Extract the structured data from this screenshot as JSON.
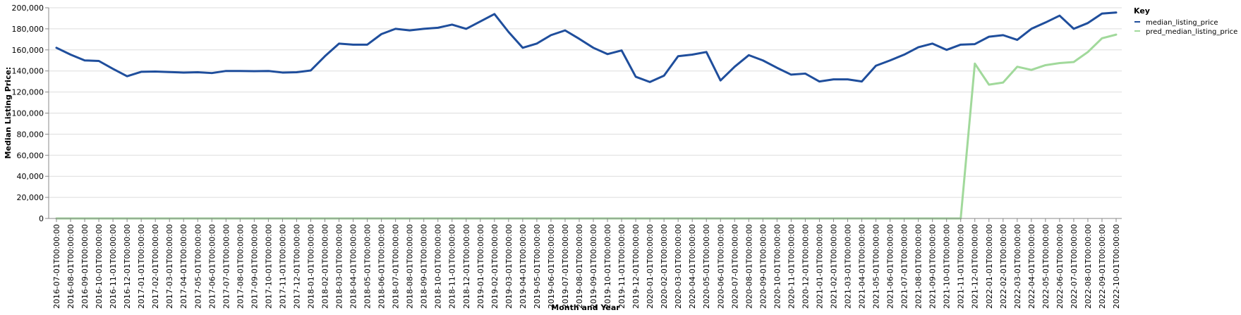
{
  "chart_data": {
    "type": "line",
    "xlabel": "Month and Year",
    "ylabel": "Median Listing Price:",
    "ylim": [
      0,
      200000
    ],
    "yticks": [
      "0",
      "20,000",
      "40,000",
      "60,000",
      "80,000",
      "100,000",
      "120,000",
      "140,000",
      "160,000",
      "180,000",
      "200,000"
    ],
    "grid": true,
    "legend": {
      "title": "Key",
      "placement": "top-right"
    },
    "x": [
      "2016-07-01T00:00:00",
      "2016-08-01T00:00:00",
      "2016-09-01T00:00:00",
      "2016-10-01T00:00:00",
      "2016-11-01T00:00:00",
      "2016-12-01T00:00:00",
      "2017-01-01T00:00:00",
      "2017-02-01T00:00:00",
      "2017-03-01T00:00:00",
      "2017-04-01T00:00:00",
      "2017-05-01T00:00:00",
      "2017-06-01T00:00:00",
      "2017-07-01T00:00:00",
      "2017-08-01T00:00:00",
      "2017-09-01T00:00:00",
      "2017-10-01T00:00:00",
      "2017-11-01T00:00:00",
      "2017-12-01T00:00:00",
      "2018-01-01T00:00:00",
      "2018-02-01T00:00:00",
      "2018-03-01T00:00:00",
      "2018-04-01T00:00:00",
      "2018-05-01T00:00:00",
      "2018-06-01T00:00:00",
      "2018-07-01T00:00:00",
      "2018-08-01T00:00:00",
      "2018-09-01T00:00:00",
      "2018-10-01T00:00:00",
      "2018-11-01T00:00:00",
      "2018-12-01T00:00:00",
      "2019-01-01T00:00:00",
      "2019-02-01T00:00:00",
      "2019-03-01T00:00:00",
      "2019-04-01T00:00:00",
      "2019-05-01T00:00:00",
      "2019-06-01T00:00:00",
      "2019-07-01T00:00:00",
      "2019-08-01T00:00:00",
      "2019-09-01T00:00:00",
      "2019-10-01T00:00:00",
      "2019-11-01T00:00:00",
      "2019-12-01T00:00:00",
      "2020-01-01T00:00:00",
      "2020-02-01T00:00:00",
      "2020-03-01T00:00:00",
      "2020-04-01T00:00:00",
      "2020-05-01T00:00:00",
      "2020-06-01T00:00:00",
      "2020-07-01T00:00:00",
      "2020-08-01T00:00:00",
      "2020-09-01T00:00:00",
      "2020-10-01T00:00:00",
      "2020-11-01T00:00:00",
      "2020-12-01T00:00:00",
      "2021-01-01T00:00:00",
      "2021-02-01T00:00:00",
      "2021-03-01T00:00:00",
      "2021-04-01T00:00:00",
      "2021-05-01T00:00:00",
      "2021-06-01T00:00:00",
      "2021-07-01T00:00:00",
      "2021-08-01T00:00:00",
      "2021-09-01T00:00:00",
      "2021-10-01T00:00:00",
      "2021-11-01T00:00:00",
      "2021-12-01T00:00:00",
      "2022-01-01T00:00:00",
      "2022-02-01T00:00:00",
      "2022-03-01T00:00:00",
      "2022-04-01T00:00:00",
      "2022-05-01T00:00:00",
      "2022-06-01T00:00:00",
      "2022-07-01T00:00:00",
      "2022-08-01T00:00:00",
      "2022-09-01T00:00:00",
      "2022-10-01T00:00:00"
    ],
    "series": [
      {
        "name": "median_listing_price",
        "color": "#1f4e9c",
        "values": [
          162000,
          155500,
          150000,
          149500,
          142000,
          135000,
          139200,
          139500,
          139000,
          138500,
          138800,
          138000,
          140000,
          140000,
          139800,
          140000,
          138500,
          138800,
          140500,
          154000,
          166000,
          165000,
          165000,
          175000,
          180000,
          178500,
          180000,
          181000,
          184000,
          180000,
          187000,
          194000,
          177000,
          162000,
          166000,
          174000,
          178500,
          170500,
          162000,
          156000,
          159500,
          134500,
          129500,
          135500,
          154000,
          155500,
          158000,
          131000,
          144000,
          155000,
          150000,
          143000,
          136500,
          137500,
          130000,
          132000,
          132000,
          130000,
          145000,
          150000,
          155500,
          162500,
          166000,
          160000,
          165000,
          165500,
          172500,
          174000,
          169500,
          180000,
          186000,
          192500,
          180000,
          185500,
          194500,
          195500
        ]
      },
      {
        "name": "pred_median_listing_price",
        "color": "#a1d99b",
        "values": [
          0,
          0,
          0,
          0,
          0,
          0,
          0,
          0,
          0,
          0,
          0,
          0,
          0,
          0,
          0,
          0,
          0,
          0,
          0,
          0,
          0,
          0,
          0,
          0,
          0,
          0,
          0,
          0,
          0,
          0,
          0,
          0,
          0,
          0,
          0,
          0,
          0,
          0,
          0,
          0,
          0,
          0,
          0,
          0,
          0,
          0,
          0,
          0,
          0,
          0,
          0,
          0,
          0,
          0,
          0,
          0,
          0,
          0,
          0,
          0,
          0,
          0,
          0,
          0,
          0,
          147000,
          127000,
          129000,
          144000,
          141000,
          145500,
          147500,
          148500,
          158000,
          171000,
          174500
        ]
      }
    ]
  }
}
